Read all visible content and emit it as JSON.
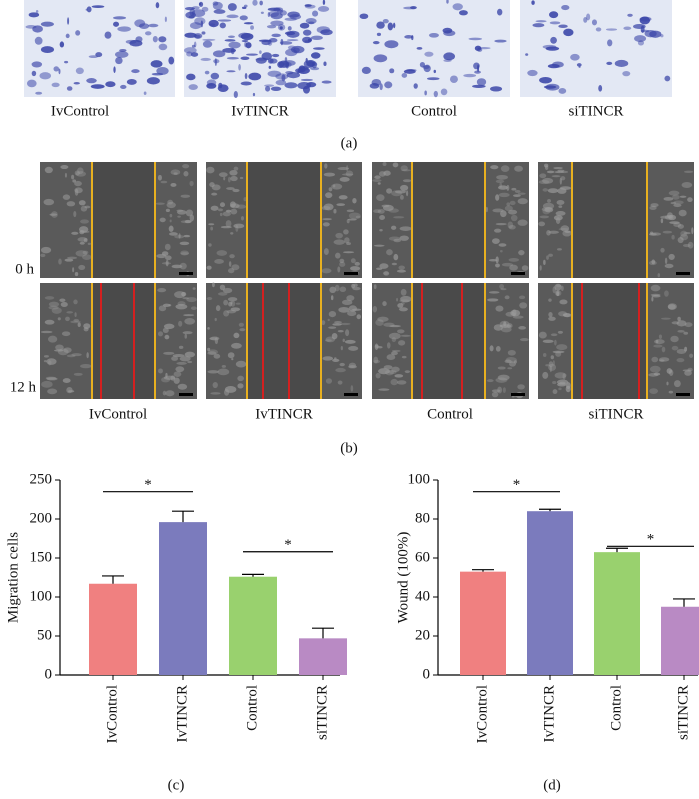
{
  "panel_a": {
    "labels": [
      "IvControl",
      "IvTINCR",
      "Control",
      "siTINCR"
    ],
    "caption": "(a)"
  },
  "panel_b": {
    "row_labels": [
      "0 h",
      "12 h"
    ],
    "labels": [
      "IvControl",
      "IvTINCR",
      "Control",
      "siTINCR"
    ],
    "caption": "(b)"
  },
  "chart_data": [
    {
      "type": "bar",
      "caption": "(c)",
      "ylabel": "Migration cells",
      "categories": [
        "IvControl",
        "IvTINCR",
        "Control",
        "siTINCR"
      ],
      "values": [
        117,
        196,
        126,
        47
      ],
      "errors": [
        10,
        14,
        3,
        13
      ],
      "colors": [
        "#f08080",
        "#7b7bbd",
        "#99d16e",
        "#b98ac4"
      ],
      "ylim": [
        0,
        250
      ],
      "yticks": [
        0,
        50,
        100,
        150,
        200,
        250
      ],
      "annotations": [
        {
          "text": "*",
          "categories": [
            "IvControl",
            "IvTINCR"
          ],
          "y": 235
        },
        {
          "text": "*",
          "categories": [
            "Control",
            "siTINCR"
          ],
          "y": 158
        }
      ]
    },
    {
      "type": "bar",
      "caption": "(d)",
      "ylabel": "Wound (100%)",
      "categories": [
        "IvControl",
        "IvTINCR",
        "Control",
        "siTINCR"
      ],
      "values": [
        53,
        84,
        63,
        35
      ],
      "errors": [
        1,
        1,
        2,
        4
      ],
      "colors": [
        "#f08080",
        "#7b7bbd",
        "#99d16e",
        "#b98ac4"
      ],
      "ylim": [
        0,
        100
      ],
      "yticks": [
        0,
        20,
        40,
        60,
        80,
        100
      ],
      "annotations": [
        {
          "text": "*",
          "categories": [
            "IvControl",
            "IvTINCR"
          ],
          "y": 94
        },
        {
          "text": "*",
          "categories": [
            "Control",
            "siTINCR"
          ],
          "y": 66
        }
      ]
    }
  ]
}
